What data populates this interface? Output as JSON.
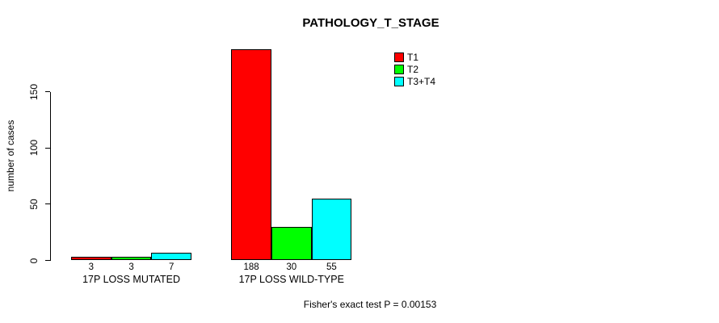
{
  "chart_data": {
    "type": "bar",
    "title": "PATHOLOGY_T_STAGE",
    "ylabel": "number of cases",
    "xlabel": "",
    "categories": [
      "17P LOSS MUTATED",
      "17P LOSS WILD-TYPE"
    ],
    "series": [
      {
        "name": "T1",
        "color": "#ff0000",
        "values": [
          3,
          188
        ]
      },
      {
        "name": "T2",
        "color": "#00ff00",
        "values": [
          3,
          30
        ]
      },
      {
        "name": "T3+T4",
        "color": "#00ffff",
        "values": [
          7,
          55
        ]
      }
    ],
    "yticks": [
      0,
      50,
      100,
      150
    ],
    "ylim": [
      0,
      195
    ],
    "grid": false,
    "bar_value_labels_shown": true,
    "legend_position": "top-right",
    "annotation": "Fisher's exact test P = 0.00153"
  },
  "colors": {
    "background": "#ffffff",
    "axis": "#000000",
    "text": "#000000",
    "bar_border": "#000000"
  }
}
